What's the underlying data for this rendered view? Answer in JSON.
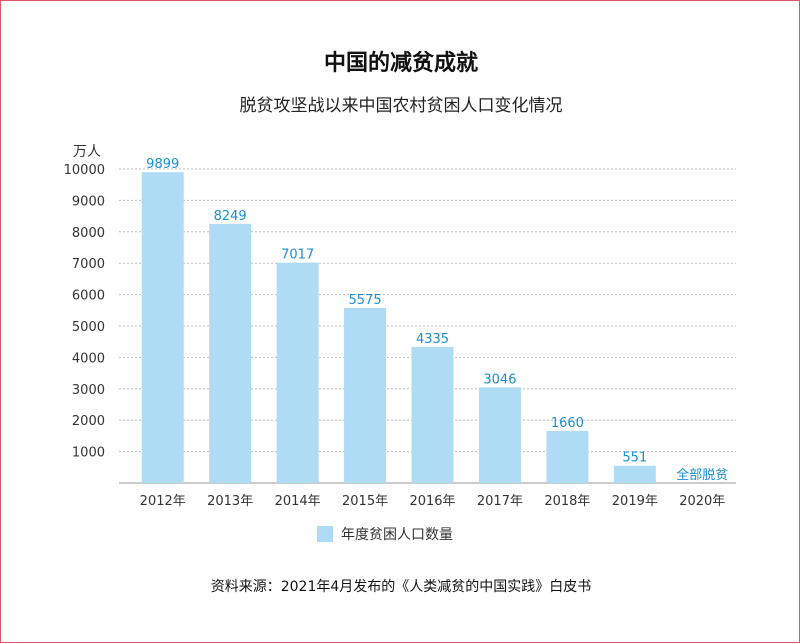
{
  "chart_data": {
    "type": "bar",
    "title": "中国的减贫成就",
    "subtitle": "脱贫攻坚战以来中国农村贫困人口变化情况",
    "ylabel": "万人",
    "xlabel": "",
    "categories": [
      "2012年",
      "2013年",
      "2014年",
      "2015年",
      "2016年",
      "2017年",
      "2018年",
      "2019年",
      "2020年"
    ],
    "values": [
      9899,
      8249,
      7017,
      5575,
      4335,
      3046,
      1660,
      551,
      0
    ],
    "value_labels": [
      "9899",
      "8249",
      "7017",
      "5575",
      "4335",
      "3046",
      "1660",
      "551",
      "全部脱贫"
    ],
    "ylim": [
      0,
      10000
    ],
    "yticks": [
      1000,
      2000,
      3000,
      4000,
      5000,
      6000,
      7000,
      8000,
      9000,
      10000
    ],
    "grid": true,
    "legend": [
      "年度贫困人口数量"
    ],
    "bar_color": "#aedcf4",
    "label_color": "#1a8fd0",
    "source": "资料来源：2021年4月发布的《人类减贫的中国实践》白皮书"
  }
}
